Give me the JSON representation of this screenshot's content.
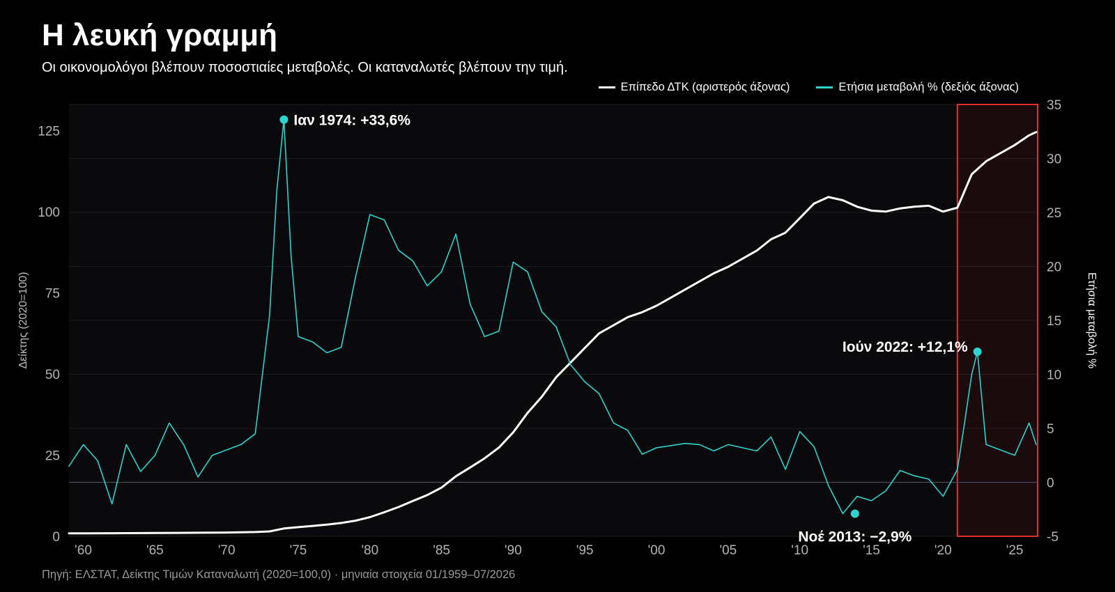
{
  "title": "Η λευκή γραμμή",
  "subtitle": "Οι οικονομολόγοι βλέπουν ποσοστιαίες μεταβολές. Οι καταναλωτές βλέπουν την τιμή.",
  "source": "Πηγή: ΕΛΣΤΑΤ, Δείκτης Τιμών Καταναλωτή (2020=100,0) · μηνιαία στοιχεία 01/1959–07/2026",
  "colors": {
    "level": "#ffffff",
    "yoy": "#2ed3cf",
    "highlight": "#e03030",
    "background": "#0a0a0c"
  },
  "chart_data": {
    "type": "line",
    "legend_position": "top-right",
    "grid": true,
    "x_range": [
      1959,
      2026.6
    ],
    "x_tick_labels": [
      "'60",
      "'65",
      "'70",
      "'75",
      "'80",
      "'85",
      "'90",
      "'95",
      "'00",
      "'05",
      "'10",
      "'15",
      "'20",
      "'25"
    ],
    "x_tick_values": [
      1960,
      1965,
      1970,
      1975,
      1980,
      1985,
      1990,
      1995,
      2000,
      2005,
      2010,
      2015,
      2020,
      2025
    ],
    "y_left": {
      "label": "Δείκτης (2020=100)",
      "range": [
        0,
        133
      ],
      "ticks": [
        0,
        25,
        50,
        75,
        100,
        125
      ]
    },
    "y_right": {
      "label": "Ετήσια μεταβολή %",
      "range": [
        -5,
        35
      ],
      "ticks": [
        -5,
        0,
        5,
        10,
        15,
        20,
        25,
        30,
        35
      ]
    },
    "highlight_range": [
      2021,
      2026.6
    ],
    "series": [
      {
        "name": "Επίπεδο ΔΤΚ (αριστερός άξονας)",
        "axis": "left",
        "x": [
          1959,
          1962,
          1965,
          1968,
          1970,
          1972,
          1973,
          1974,
          1975,
          1976,
          1977,
          1978,
          1979,
          1980,
          1981,
          1982,
          1983,
          1984,
          1985,
          1986,
          1987,
          1988,
          1989,
          1990,
          1991,
          1992,
          1993,
          1994,
          1995,
          1996,
          1997,
          1998,
          1999,
          2000,
          2001,
          2002,
          2003,
          2004,
          2005,
          2006,
          2007,
          2008,
          2009,
          2010,
          2011,
          2012,
          2013,
          2014,
          2015,
          2016,
          2017,
          2018,
          2019,
          2020,
          2021,
          2022,
          2023,
          2024,
          2025,
          2026,
          2026.5
        ],
        "values": [
          0.9,
          0.95,
          1.0,
          1.1,
          1.15,
          1.3,
          1.5,
          2.4,
          2.8,
          3.2,
          3.6,
          4.1,
          4.8,
          5.9,
          7.4,
          9.0,
          10.9,
          12.7,
          15.0,
          18.5,
          21.2,
          24.0,
          27.3,
          32.0,
          38.0,
          43.0,
          49.0,
          53.5,
          58.0,
          62.5,
          65.0,
          67.5,
          69.0,
          71.0,
          73.5,
          76.0,
          78.5,
          81.0,
          83.0,
          85.5,
          88.0,
          91.5,
          93.5,
          98.0,
          102.5,
          104.5,
          103.5,
          101.5,
          100.3,
          100.0,
          101.0,
          101.5,
          101.8,
          100.0,
          101.2,
          111.5,
          115.5,
          118.0,
          120.5,
          123.5,
          124.5
        ]
      },
      {
        "name": "Ετήσια μεταβολή % (δεξιός άξονας)",
        "axis": "right",
        "x": [
          1959,
          1960,
          1961,
          1962,
          1963,
          1964,
          1965,
          1966,
          1967,
          1968,
          1969,
          1970,
          1971,
          1972,
          1973,
          1973.5,
          1974,
          1974.5,
          1975,
          1976,
          1977,
          1978,
          1979,
          1980,
          1981,
          1982,
          1983,
          1984,
          1985,
          1986,
          1987,
          1988,
          1989,
          1990,
          1991,
          1992,
          1993,
          1994,
          1995,
          1996,
          1997,
          1998,
          1999,
          2000,
          2001,
          2002,
          2003,
          2004,
          2005,
          2006,
          2007,
          2008,
          2009,
          2010,
          2011,
          2012,
          2013,
          2014,
          2015,
          2016,
          2017,
          2018,
          2019,
          2020,
          2021,
          2021.5,
          2022,
          2022.4,
          2023,
          2024,
          2025,
          2026,
          2026.5
        ],
        "values": [
          1.5,
          3.5,
          2.0,
          -2.0,
          3.5,
          1.0,
          2.5,
          5.5,
          3.5,
          0.5,
          2.5,
          3.0,
          3.5,
          4.5,
          15.5,
          27.0,
          33.6,
          21.0,
          13.5,
          13.0,
          12.0,
          12.5,
          19.0,
          24.8,
          24.3,
          21.5,
          20.5,
          18.2,
          19.5,
          23.0,
          16.5,
          13.5,
          14.0,
          20.4,
          19.5,
          15.8,
          14.4,
          10.9,
          9.3,
          8.2,
          5.5,
          4.8,
          2.6,
          3.2,
          3.4,
          3.6,
          3.5,
          2.9,
          3.5,
          3.2,
          2.9,
          4.2,
          1.2,
          4.7,
          3.3,
          -0.3,
          -2.9,
          -1.3,
          -1.7,
          -0.8,
          1.1,
          0.6,
          0.3,
          -1.3,
          1.2,
          5.5,
          10.0,
          12.1,
          3.5,
          3.0,
          2.5,
          5.5,
          3.5
        ]
      }
    ],
    "annotations": [
      {
        "label": "Ιαν 1974: +33,6%",
        "x": 1974.0,
        "y": 33.6,
        "axis": "right"
      },
      {
        "label": "Ιούν 2022: +12,1%",
        "x": 2022.4,
        "y": 12.1,
        "axis": "right"
      },
      {
        "label": "Νοέ 2013: −2,9%",
        "x": 2013.85,
        "y": -2.9,
        "axis": "right"
      }
    ]
  }
}
